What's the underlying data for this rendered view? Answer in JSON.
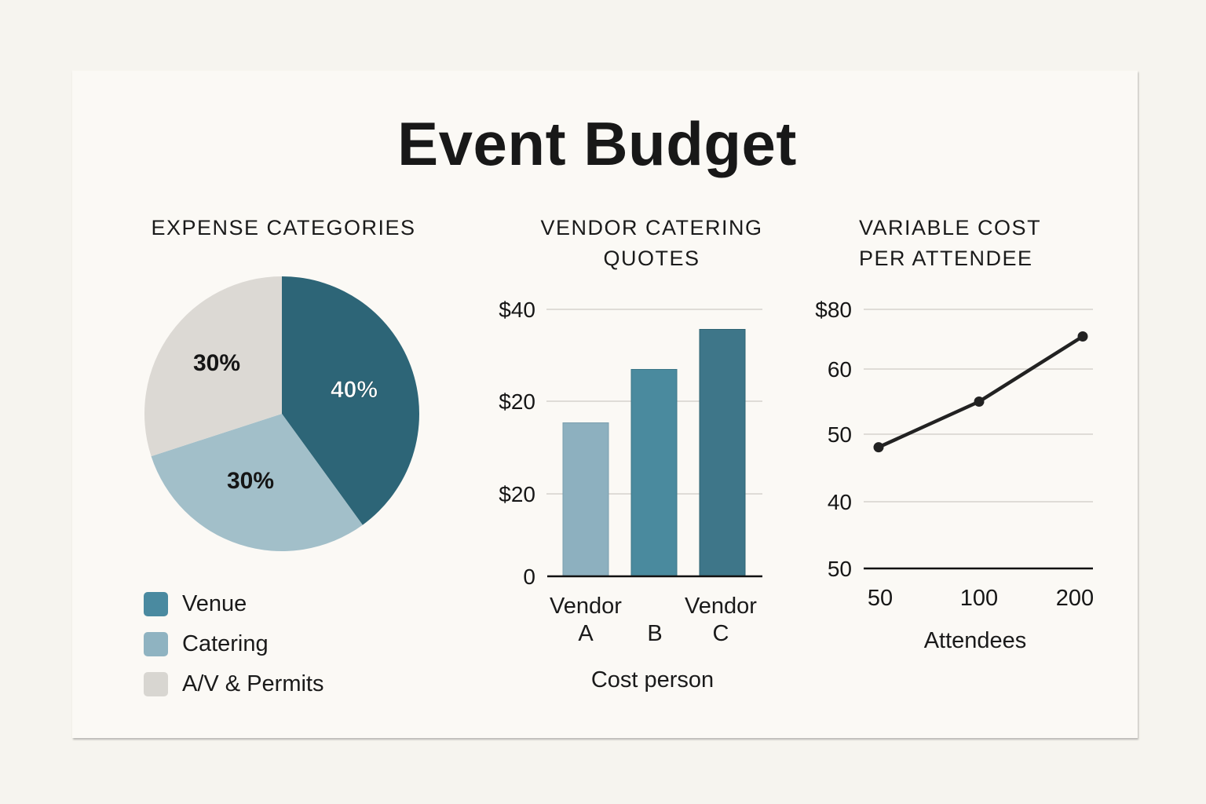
{
  "title": "Event Budget",
  "colors": {
    "venue": "#2d6577",
    "catering": "#a2bfc9",
    "av_permits": "#dcd9d4",
    "legend_venue": "#4a8aa0",
    "legend_catering": "#8fb3c1",
    "legend_av": "#d8d6d1",
    "bar_a": "#8db0bf",
    "bar_b": "#4a8a9e",
    "bar_c": "#3e7689",
    "line": "#222222",
    "grid": "#d6d3cd"
  },
  "pie": {
    "heading": "EXPENSE CATEGORIES",
    "slices": [
      {
        "label": "Venue",
        "value": 40,
        "text": "40%"
      },
      {
        "label": "Catering",
        "value": 30,
        "text": "30%"
      },
      {
        "label": "A/V & Permits",
        "value": 30,
        "text": "30%"
      }
    ],
    "legend": [
      "Venue",
      "Catering",
      "A/V & Permits"
    ]
  },
  "bar": {
    "heading_line1": "VENDOR CATERING",
    "heading_line2": "QUOTES",
    "y_ticks": [
      "$40",
      "$20",
      "$20",
      "0"
    ],
    "x_labels_line1": [
      "Vendor",
      "",
      "Vendor"
    ],
    "x_labels_line2": [
      "A",
      "B",
      "C"
    ],
    "xlabel": "Cost person"
  },
  "line": {
    "heading_line1": "VARIABLE COST",
    "heading_line2": "PER ATTENDEE",
    "y_ticks": [
      "$80",
      "60",
      "50",
      "40",
      "50"
    ],
    "x_ticks": [
      "50",
      "100",
      "200"
    ],
    "xlabel": "Attendees"
  },
  "chart_data": [
    {
      "type": "pie",
      "title": "EXPENSE CATEGORIES",
      "categories": [
        "Venue",
        "Catering",
        "A/V & Permits"
      ],
      "values": [
        40,
        30,
        30
      ],
      "unit": "%",
      "legend_position": "bottom"
    },
    {
      "type": "bar",
      "title": "VENDOR CATERING QUOTES",
      "categories": [
        "Vendor A",
        "B",
        "Vendor C"
      ],
      "values": [
        23,
        31,
        37
      ],
      "xlabel": "Cost person",
      "ylabel": "",
      "y_tick_labels": [
        "0",
        "$20",
        "$20",
        "$40"
      ],
      "ylim": [
        0,
        40
      ],
      "grid": true
    },
    {
      "type": "line",
      "title": "VARIABLE COST PER ATTENDEE",
      "x": [
        50,
        100,
        200
      ],
      "values": [
        48,
        55,
        65
      ],
      "xlabel": "Attendees",
      "ylabel": "",
      "y_tick_labels": [
        "50",
        "40",
        "50",
        "60",
        "$80"
      ],
      "ylim": [
        40,
        80
      ],
      "grid": true,
      "markers": true
    }
  ]
}
